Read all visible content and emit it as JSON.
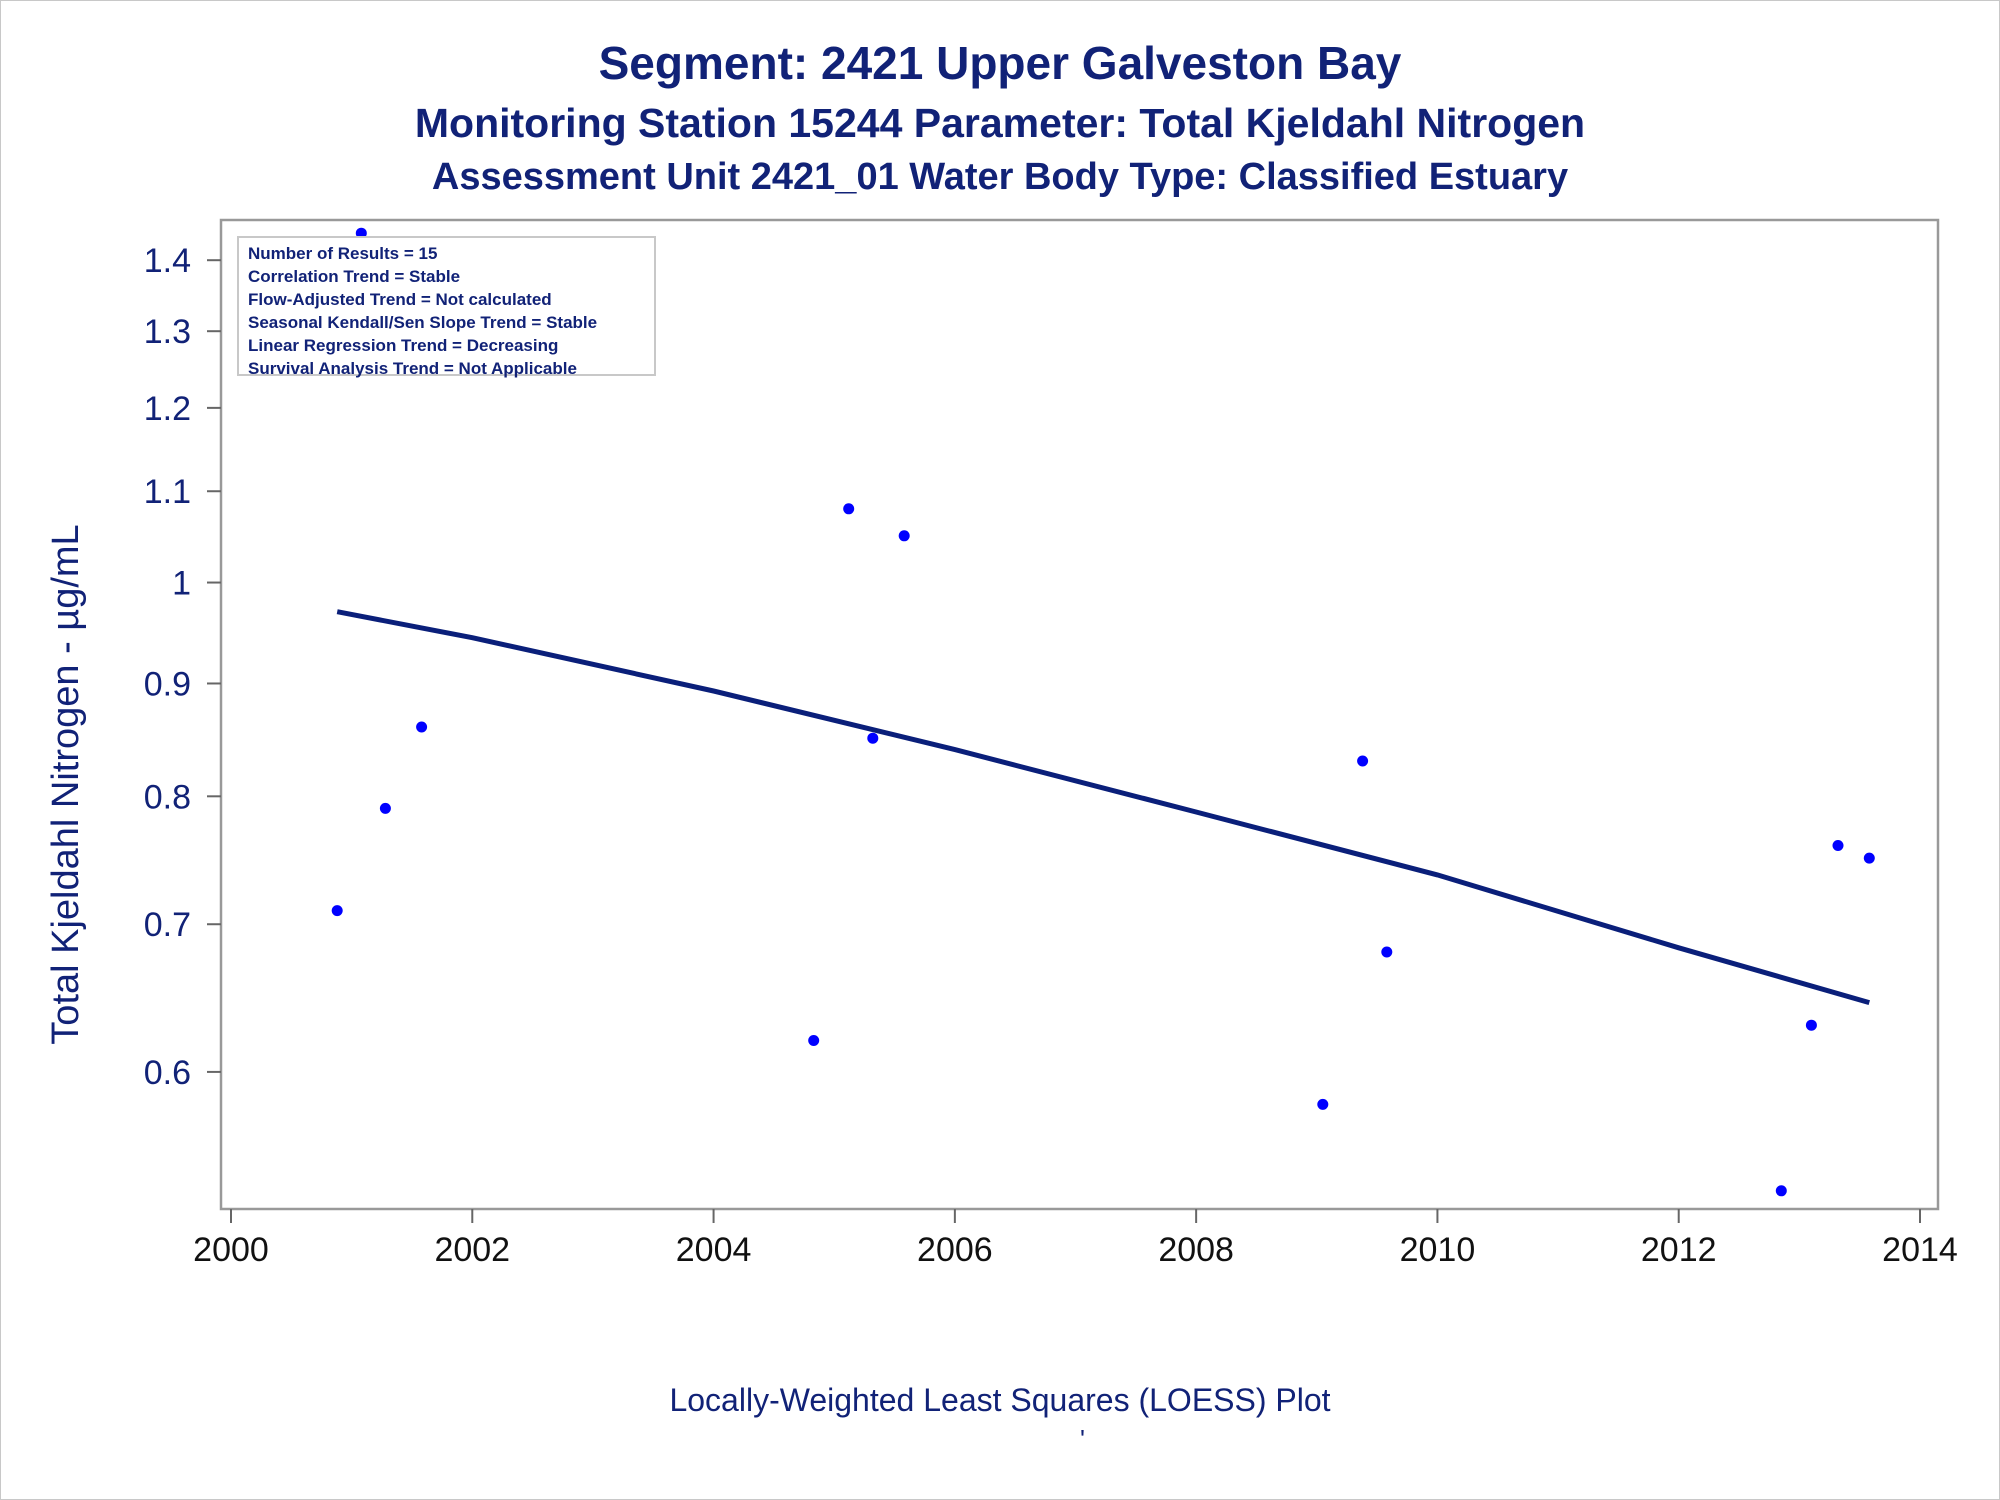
{
  "titles": {
    "line1": "Segment: 2421  Upper Galveston Bay",
    "line2": "Monitoring Station 15244 Parameter: Total Kjeldahl Nitrogen",
    "line3": "Assessment Unit 2421_01   Water Body Type: Classified Estuary"
  },
  "stats": [
    "Number of Results = 15",
    "Correlation Trend = Stable",
    "Flow-Adjusted Trend = Not calculated",
    "Seasonal Kendall/Sen Slope Trend = Stable",
    "Linear Regression Trend = Decreasing",
    "Survival Analysis Trend = Not Applicable"
  ],
  "footnote": "Locally-Weighted Least Squares (LOESS) Plot",
  "footnote_mark": "'",
  "colors": {
    "text": "#112277",
    "points": "#0000ff",
    "trend_line": "#0a1f7a",
    "frame": "#999999"
  },
  "chart_data": {
    "type": "scatter",
    "ylabel": "Total Kjeldahl Nitrogen -  µg/mL",
    "xlabel": "",
    "x_scale": "linear",
    "y_scale": "log",
    "xlim": [
      2000,
      2014
    ],
    "ylim": [
      0.52,
      1.46
    ],
    "x_ticks": [
      2000,
      2002,
      2004,
      2006,
      2008,
      2010,
      2012,
      2014
    ],
    "y_ticks": [
      0.6,
      0.7,
      0.8,
      0.9,
      1,
      1.1,
      1.2,
      1.3,
      1.4
    ],
    "y_tick_labels": [
      "0.6",
      "0.7",
      "0.8",
      "0.9",
      "1",
      "1.1",
      "1.2",
      "1.3",
      "1.4"
    ],
    "grid": false,
    "series": [
      {
        "kind": "points",
        "x": [
          2000.88,
          2001.08,
          2001.28,
          2001.58,
          2004.83,
          2005.12,
          2005.32,
          2005.58,
          2009.05,
          2009.38,
          2009.58,
          2012.85,
          2013.1,
          2013.32,
          2013.58
        ],
        "y": [
          0.71,
          1.44,
          0.79,
          0.86,
          0.62,
          1.08,
          0.85,
          1.05,
          0.58,
          0.83,
          0.68,
          0.53,
          0.63,
          0.76,
          0.75
        ]
      },
      {
        "kind": "line",
        "x": [
          2000.88,
          2002,
          2004,
          2006,
          2008,
          2010,
          2012,
          2013.58
        ],
        "y": [
          0.97,
          0.944,
          0.893,
          0.84,
          0.787,
          0.737,
          0.683,
          0.645
        ]
      }
    ]
  }
}
